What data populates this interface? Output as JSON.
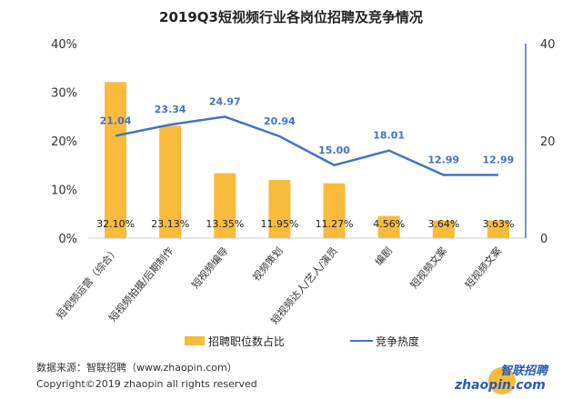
{
  "chart_data": {
    "type": "bar+line",
    "title": "2019Q3短视频行业各岗位招聘及竞争情况",
    "categories": [
      "短视频运营（综合）",
      "短视频拍摄/后期制作",
      "短视频编导",
      "视频策划",
      "短视频达人/艺人/演员",
      "编剧",
      "短视频文案",
      "短视频文案"
    ],
    "series": [
      {
        "name": "招聘职位数占比",
        "type": "bar",
        "axis": "left",
        "values": [
          32.1,
          23.13,
          13.35,
          11.95,
          11.27,
          4.56,
          3.64,
          3.63
        ],
        "labels": [
          "32.10%",
          "23.13%",
          "13.35%",
          "11.95%",
          "11.27%",
          "4.56%",
          "3.64%",
          "3.63%"
        ],
        "color": "#F8BB3C"
      },
      {
        "name": "竞争热度",
        "type": "line",
        "axis": "right",
        "values": [
          21.04,
          23.34,
          24.97,
          20.94,
          15.0,
          18.01,
          12.99,
          12.99
        ],
        "labels": [
          "21.04",
          "23.34",
          "24.97",
          "20.94",
          "15.00",
          "18.01",
          "12.99",
          "12.99"
        ],
        "color": "#4472C4"
      }
    ],
    "ylim_left": [
      0,
      40
    ],
    "yticks_left": [
      "0%",
      "10%",
      "20%",
      "30%",
      "40%"
    ],
    "ylim_right": [
      0,
      40
    ],
    "yticks_right": [
      "0",
      "20",
      "40"
    ],
    "legend": "bottom",
    "grid": false
  },
  "footer": {
    "source": "数据来源：智联招聘（www.zhaopin.com）",
    "copyright": "Copyright©2019 zhaopin all rights reserved",
    "logo_text": "智联招聘 zhaopin.com"
  }
}
